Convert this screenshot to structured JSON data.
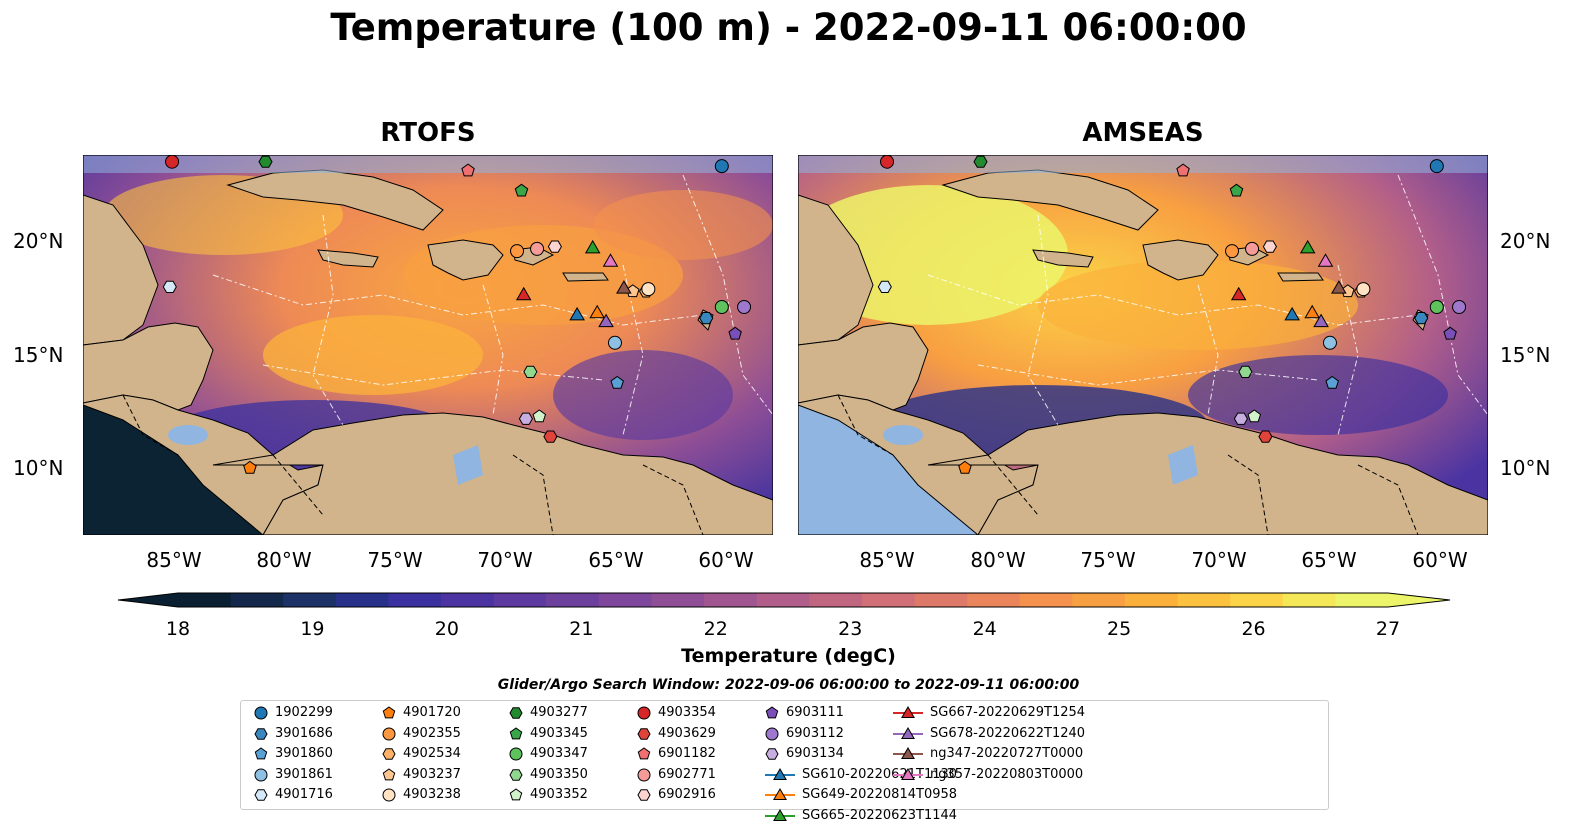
{
  "title": "Temperature (100 m) - 2022-09-11 06:00:00",
  "panels": [
    {
      "id": "rtofs",
      "title": "RTOFS"
    },
    {
      "id": "amseas",
      "title": "AMSEAS"
    }
  ],
  "lat_labels": [
    "20°N",
    "15°N",
    "10°N"
  ],
  "lon_labels": [
    "85°W",
    "80°W",
    "75°W",
    "70°W",
    "65°W",
    "60°W"
  ],
  "colorbar": {
    "label": "Temperature (degC)",
    "ticks": [
      "18",
      "19",
      "20",
      "21",
      "22",
      "23",
      "24",
      "25",
      "26",
      "27"
    ],
    "colors": [
      "#0b1f33",
      "#14284b",
      "#1c3166",
      "#27318a",
      "#3a30a0",
      "#4b34a2",
      "#5c3aa0",
      "#6d409e",
      "#7e479b",
      "#8f4e96",
      "#a05691",
      "#b15e8a",
      "#c16681",
      "#d06f76",
      "#de7969",
      "#ea845b",
      "#f3914d",
      "#f89f42",
      "#fbb03c",
      "#fcc13e",
      "#fbd447",
      "#f4e859",
      "#ecf56a"
    ]
  },
  "legend_title": "Glider/Argo Search Window: 2022-09-06 06:00:00 to 2022-09-11 06:00:00",
  "legend": [
    [
      {
        "label": "1902299",
        "color": "#1f77b4",
        "shape": "circle"
      },
      {
        "label": "3901686",
        "color": "#3a87c0",
        "shape": "hexagon"
      },
      {
        "label": "3901860",
        "color": "#5aa0d4",
        "shape": "pentagon"
      },
      {
        "label": "3901861",
        "color": "#8ec0e4",
        "shape": "circle"
      },
      {
        "label": "4901716",
        "color": "#d4e8f7",
        "shape": "hexagon"
      }
    ],
    [
      {
        "label": "4901720",
        "color": "#ff7f0e",
        "shape": "pentagon"
      },
      {
        "label": "4902355",
        "color": "#fd9840",
        "shape": "circle"
      },
      {
        "label": "4902534",
        "color": "#fdb168",
        "shape": "hexagon"
      },
      {
        "label": "4903237",
        "color": "#fdc690",
        "shape": "pentagon"
      },
      {
        "label": "4903238",
        "color": "#ffe3c4",
        "shape": "circle"
      }
    ],
    [
      {
        "label": "4903277",
        "color": "#238b2f",
        "shape": "hexagon"
      },
      {
        "label": "4903345",
        "color": "#3aa64a",
        "shape": "pentagon"
      },
      {
        "label": "4903347",
        "color": "#5ec35c",
        "shape": "circle"
      },
      {
        "label": "4903350",
        "color": "#90d890",
        "shape": "hexagon"
      },
      {
        "label": "4903352",
        "color": "#d2f2cc",
        "shape": "pentagon"
      }
    ],
    [
      {
        "label": "4903354",
        "color": "#d62728",
        "shape": "circle"
      },
      {
        "label": "4903629",
        "color": "#e0433a",
        "shape": "hexagon"
      },
      {
        "label": "6901182",
        "color": "#ef7070",
        "shape": "pentagon"
      },
      {
        "label": "6902771",
        "color": "#f59c98",
        "shape": "circle"
      },
      {
        "label": "6902916",
        "color": "#fcd4d0",
        "shape": "hexagon"
      }
    ],
    [
      {
        "label": "6903111",
        "color": "#7b4fb8",
        "shape": "pentagon"
      },
      {
        "label": "6903112",
        "color": "#9d78cc",
        "shape": "circle"
      },
      {
        "label": "6903134",
        "color": "#c6aee0",
        "shape": "hexagon"
      },
      {
        "label": "SG610-20220621T1130",
        "color": "#1f77b4",
        "shape": "triangle",
        "line": true
      },
      {
        "label": "SG649-20220814T0958",
        "color": "#ff7f0e",
        "shape": "triangle",
        "line": true
      },
      {
        "label": "SG665-20220623T1144",
        "color": "#2ca02c",
        "shape": "triangle",
        "line": true
      }
    ],
    [
      {
        "label": "SG667-20220629T1254",
        "color": "#d62728",
        "shape": "triangle",
        "line": true
      },
      {
        "label": "SG678-20220622T1240",
        "color": "#9467bd",
        "shape": "triangle",
        "line": true
      },
      {
        "label": "ng347-20220727T0000",
        "color": "#8c564b",
        "shape": "triangle",
        "line": true
      },
      {
        "label": "ng357-20220803T0000",
        "color": "#e377c2",
        "shape": "triangle",
        "line": true
      }
    ]
  ],
  "markers": [
    {
      "id": "1902299",
      "lon": -60.3,
      "lat": 23.5,
      "color": "#1f77b4",
      "shape": "circle"
    },
    {
      "id": "3901686",
      "lon": -61.0,
      "lat": 16.7,
      "color": "#3a87c0",
      "shape": "hexagon"
    },
    {
      "id": "3901860",
      "lon": -65.0,
      "lat": 13.8,
      "color": "#5aa0d4",
      "shape": "pentagon"
    },
    {
      "id": "3901861",
      "lon": -65.1,
      "lat": 15.6,
      "color": "#8ec0e4",
      "shape": "circle"
    },
    {
      "id": "4901716",
      "lon": -85.1,
      "lat": 18.1,
      "color": "#d4e8f7",
      "shape": "hexagon"
    },
    {
      "id": "4901720",
      "lon": -81.5,
      "lat": 10.0,
      "color": "#ff7f0e",
      "shape": "pentagon"
    },
    {
      "id": "4902355",
      "lon": -69.5,
      "lat": 19.7,
      "color": "#fd9840",
      "shape": "circle"
    },
    {
      "id": "4902534",
      "lon": -63.7,
      "lat": 17.9,
      "color": "#fdb168",
      "shape": "hexagon"
    },
    {
      "id": "4903237",
      "lon": -64.3,
      "lat": 17.9,
      "color": "#fdc690",
      "shape": "pentagon"
    },
    {
      "id": "4903238",
      "lon": -63.6,
      "lat": 18.0,
      "color": "#ffe3c4",
      "shape": "circle"
    },
    {
      "id": "4903277",
      "lon": -80.8,
      "lat": 23.7,
      "color": "#238b2f",
      "shape": "hexagon"
    },
    {
      "id": "4903345",
      "lon": -69.3,
      "lat": 22.4,
      "color": "#3aa64a",
      "shape": "pentagon"
    },
    {
      "id": "4903347",
      "lon": -60.3,
      "lat": 17.2,
      "color": "#5ec35c",
      "shape": "circle"
    },
    {
      "id": "4903350",
      "lon": -68.9,
      "lat": 14.3,
      "color": "#90d890",
      "shape": "hexagon"
    },
    {
      "id": "4903352",
      "lon": -68.5,
      "lat": 12.3,
      "color": "#d2f2cc",
      "shape": "pentagon"
    },
    {
      "id": "4903354",
      "lon": -85.0,
      "lat": 23.7,
      "color": "#d62728",
      "shape": "circle"
    },
    {
      "id": "4903629",
      "lon": -68.0,
      "lat": 11.4,
      "color": "#e0433a",
      "shape": "hexagon"
    },
    {
      "id": "6901182",
      "lon": -71.7,
      "lat": 23.3,
      "color": "#ef7070",
      "shape": "pentagon"
    },
    {
      "id": "6902771",
      "lon": -68.6,
      "lat": 19.8,
      "color": "#f59c98",
      "shape": "circle"
    },
    {
      "id": "6902916",
      "lon": -67.8,
      "lat": 19.9,
      "color": "#fcd4d0",
      "shape": "hexagon"
    },
    {
      "id": "6903111",
      "lon": -59.7,
      "lat": 16.0,
      "color": "#7b4fb8",
      "shape": "pentagon"
    },
    {
      "id": "6903112",
      "lon": -59.3,
      "lat": 17.2,
      "color": "#9d78cc",
      "shape": "circle"
    },
    {
      "id": "6903134",
      "lon": -69.1,
      "lat": 12.2,
      "color": "#c6aee0",
      "shape": "hexagon"
    },
    {
      "id": "SG610-20220621T1130",
      "lon": -66.8,
      "lat": 16.8,
      "color": "#1f77b4",
      "shape": "triangle"
    },
    {
      "id": "SG649-20220814T0958",
      "lon": -65.9,
      "lat": 16.9,
      "color": "#ff7f0e",
      "shape": "triangle"
    },
    {
      "id": "SG665-20220623T1144",
      "lon": -66.1,
      "lat": 19.8,
      "color": "#2ca02c",
      "shape": "triangle"
    },
    {
      "id": "SG667-20220629T1254",
      "lon": -69.2,
      "lat": 17.7,
      "color": "#d62728",
      "shape": "triangle"
    },
    {
      "id": "SG678-20220622T1240",
      "lon": -65.5,
      "lat": 16.5,
      "color": "#9467bd",
      "shape": "triangle"
    },
    {
      "id": "ng347-20220727T0000",
      "lon": -64.7,
      "lat": 18.0,
      "color": "#8c564b",
      "shape": "triangle"
    },
    {
      "id": "ng357-20220803T0000",
      "lon": -65.3,
      "lat": 19.2,
      "color": "#e377c2",
      "shape": "triangle"
    }
  ]
}
